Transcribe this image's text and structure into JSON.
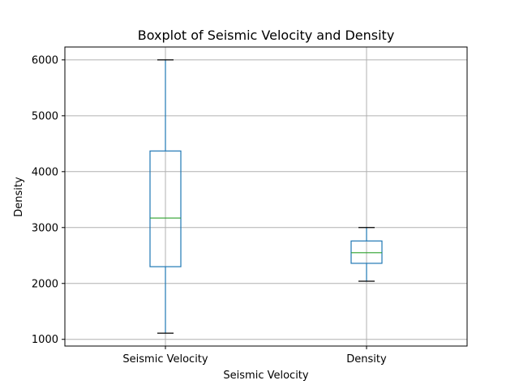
{
  "chart_data": {
    "type": "box",
    "title": "Boxplot of Seismic Velocity and Density",
    "xlabel": "Seismic Velocity",
    "ylabel": "Density",
    "ylim": [
      880,
      6230
    ],
    "yticks": [
      1000,
      2000,
      3000,
      4000,
      5000,
      6000
    ],
    "grid": true,
    "categories": [
      "Seismic Velocity",
      "Density"
    ],
    "boxes": [
      {
        "label": "Seismic Velocity",
        "whislo": 1110,
        "q1": 2300,
        "med": 3170,
        "q3": 4370,
        "whishi": 6000
      },
      {
        "label": "Density",
        "whislo": 2040,
        "q1": 2360,
        "med": 2550,
        "q3": 2760,
        "whishi": 3000
      }
    ],
    "colors": {
      "box": "#1f77b4",
      "median": "#2ca02c",
      "cap": "#000000",
      "grid": "#b0b0b0"
    }
  }
}
